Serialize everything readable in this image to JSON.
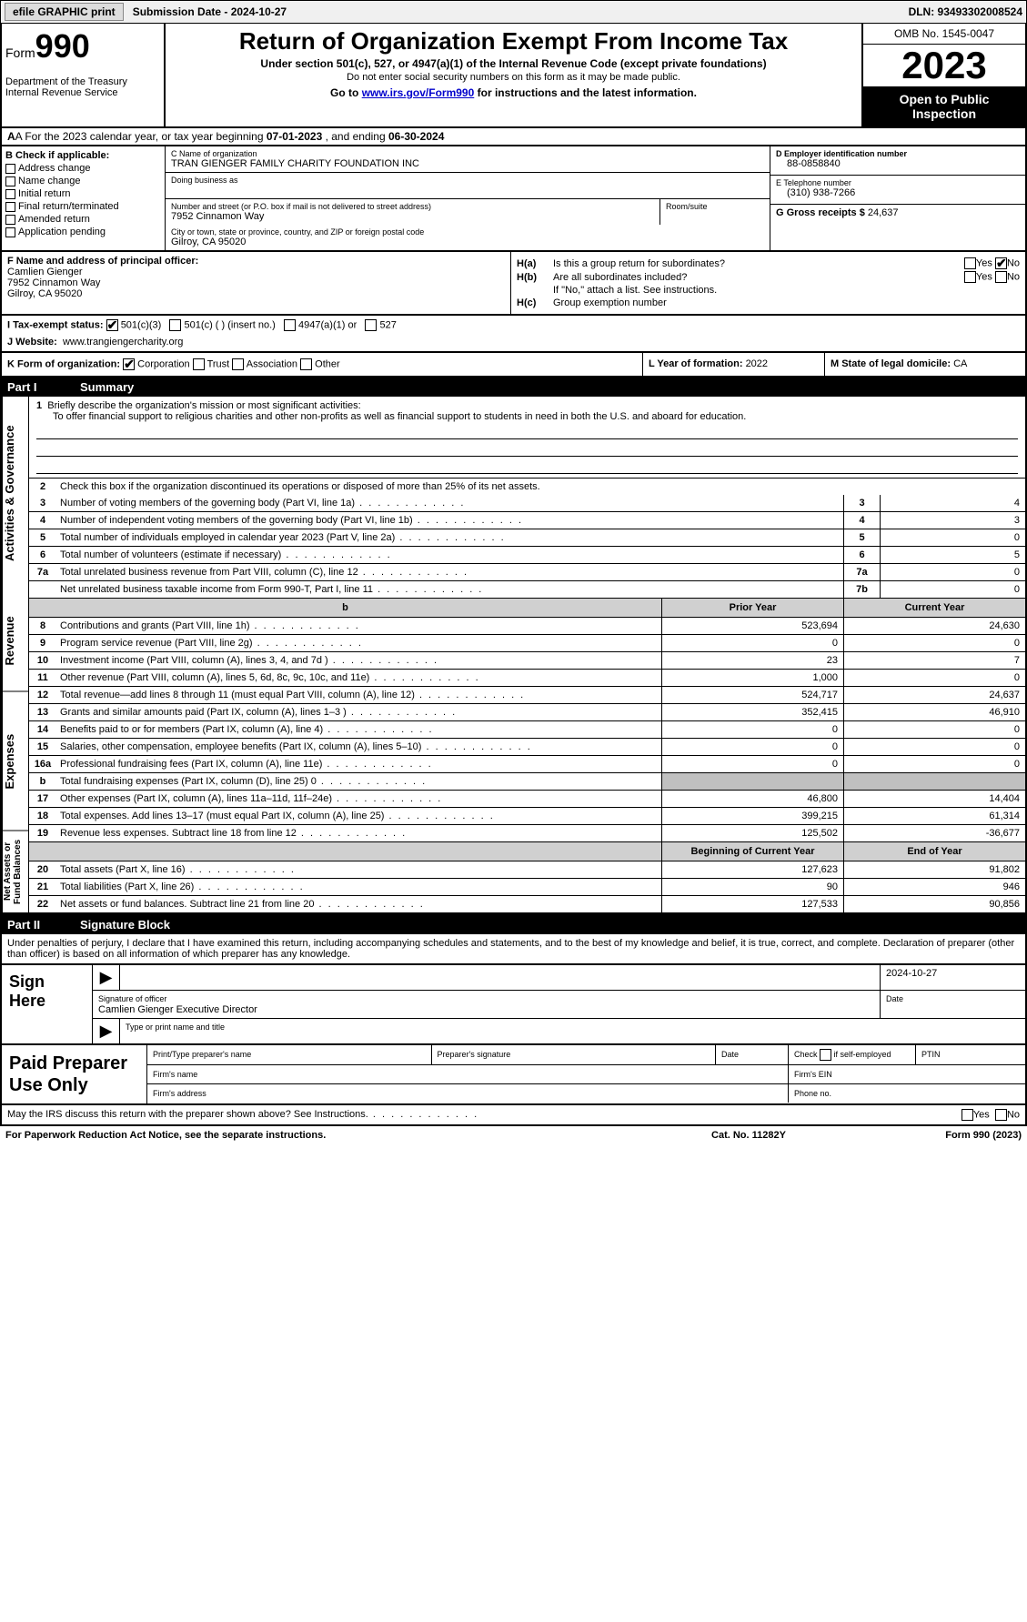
{
  "topbar": {
    "efile": "efile GRAPHIC print",
    "submission": "Submission Date - 2024-10-27",
    "dln": "DLN: 93493302008524"
  },
  "header": {
    "form_label": "Form",
    "form_num": "990",
    "dept": "Department of the Treasury Internal Revenue Service",
    "title": "Return of Organization Exempt From Income Tax",
    "sub1": "Under section 501(c), 527, or 4947(a)(1) of the Internal Revenue Code (except private foundations)",
    "sub2": "Do not enter social security numbers on this form as it may be made public.",
    "sub3_pre": "Go to ",
    "sub3_link": "www.irs.gov/Form990",
    "sub3_post": " for instructions and the latest information.",
    "omb": "OMB No. 1545-0047",
    "year": "2023",
    "inspect": "Open to Public Inspection"
  },
  "row_a": {
    "pre": "A For the 2023 calendar year, or tax year beginning ",
    "begin": "07-01-2023",
    "mid": " , and ending ",
    "end": "06-30-2024"
  },
  "col_b": {
    "label": "B Check if applicable:",
    "items": [
      "Address change",
      "Name change",
      "Initial return",
      "Final return/terminated",
      "Amended return",
      "Application pending"
    ]
  },
  "col_c": {
    "name_lbl": "C Name of organization",
    "name": "TRAN GIENGER FAMILY CHARITY FOUNDATION INC",
    "dba_lbl": "Doing business as",
    "addr_lbl": "Number and street (or P.O. box if mail is not delivered to street address)",
    "addr": "7952 Cinnamon Way",
    "room_lbl": "Room/suite",
    "city_lbl": "City or town, state or province, country, and ZIP or foreign postal code",
    "city": "Gilroy, CA  95020"
  },
  "col_d": {
    "ein_lbl": "D Employer identification number",
    "ein": "88-0858840",
    "tel_lbl": "E Telephone number",
    "tel": "(310) 938-7266",
    "gross_lbl": "G Gross receipts $ ",
    "gross": "24,637"
  },
  "col_f": {
    "lbl": "F Name and address of principal officer:",
    "name": "Camlien Gienger",
    "addr1": "7952 Cinnamon Way",
    "addr2": "Gilroy, CA  95020"
  },
  "col_h": {
    "ha_lbl": "H(a)",
    "ha_txt": "Is this a group return for subordinates?",
    "ha_no": true,
    "hb_lbl": "H(b)",
    "hb_txt": "Are all subordinates included?",
    "hb_note": "If \"No,\" attach a list. See instructions.",
    "hc_lbl": "H(c)",
    "hc_txt": "Group exemption number"
  },
  "row_i": {
    "lbl": "I    Tax-exempt status:",
    "c3": "501(c)(3)",
    "c": "501(c) (  ) (insert no.)",
    "a1": "4947(a)(1) or",
    "s527": "527"
  },
  "row_j": {
    "lbl": "J    Website:",
    "val": "www.trangiengercharity.org"
  },
  "row_k": {
    "lbl": "K Form of organization:",
    "corp": "Corporation",
    "trust": "Trust",
    "assoc": "Association",
    "other": "Other",
    "l_lbl": "L Year of formation: ",
    "l_val": "2022",
    "m_lbl": "M State of legal domicile: ",
    "m_val": "CA"
  },
  "part1": {
    "num": "Part I",
    "title": "Summary"
  },
  "vtabs": {
    "ag": "Activities & Governance",
    "rev": "Revenue",
    "exp": "Expenses",
    "net": "Net Assets or Fund Balances"
  },
  "mission": {
    "lbl": "Briefly describe the organization's mission or most significant activities:",
    "txt": "To offer financial support to religious charities and other non-profits as well as financial support to students in need in both the U.S. and aboard for education."
  },
  "q2": "Check this box      if the organization discontinued its operations or disposed of more than 25% of its net assets.",
  "rows_ag": [
    {
      "n": "3",
      "t": "Number of voting members of the governing body (Part VI, line 1a)",
      "b": "3",
      "v": "4"
    },
    {
      "n": "4",
      "t": "Number of independent voting members of the governing body (Part VI, line 1b)",
      "b": "4",
      "v": "3"
    },
    {
      "n": "5",
      "t": "Total number of individuals employed in calendar year 2023 (Part V, line 2a)",
      "b": "5",
      "v": "0"
    },
    {
      "n": "6",
      "t": "Total number of volunteers (estimate if necessary)",
      "b": "6",
      "v": "5"
    },
    {
      "n": "7a",
      "t": "Total unrelated business revenue from Part VIII, column (C), line 12",
      "b": "7a",
      "v": "0"
    },
    {
      "n": "",
      "t": "Net unrelated business taxable income from Form 990-T, Part I, line 11",
      "b": "7b",
      "v": "0"
    }
  ],
  "tbl_hdr": {
    "c2": "Prior Year",
    "c3": "Current Year"
  },
  "rows_rev": [
    {
      "n": "8",
      "t": "Contributions and grants (Part VIII, line 1h)",
      "v1": "523,694",
      "v2": "24,630"
    },
    {
      "n": "9",
      "t": "Program service revenue (Part VIII, line 2g)",
      "v1": "0",
      "v2": "0"
    },
    {
      "n": "10",
      "t": "Investment income (Part VIII, column (A), lines 3, 4, and 7d )",
      "v1": "23",
      "v2": "7"
    },
    {
      "n": "11",
      "t": "Other revenue (Part VIII, column (A), lines 5, 6d, 8c, 9c, 10c, and 11e)",
      "v1": "1,000",
      "v2": "0"
    },
    {
      "n": "12",
      "t": "Total revenue—add lines 8 through 11 (must equal Part VIII, column (A), line 12)",
      "v1": "524,717",
      "v2": "24,637"
    }
  ],
  "rows_exp": [
    {
      "n": "13",
      "t": "Grants and similar amounts paid (Part IX, column (A), lines 1–3 )",
      "v1": "352,415",
      "v2": "46,910"
    },
    {
      "n": "14",
      "t": "Benefits paid to or for members (Part IX, column (A), line 4)",
      "v1": "0",
      "v2": "0"
    },
    {
      "n": "15",
      "t": "Salaries, other compensation, employee benefits (Part IX, column (A), lines 5–10)",
      "v1": "0",
      "v2": "0"
    },
    {
      "n": "16a",
      "t": "Professional fundraising fees (Part IX, column (A), line 11e)",
      "v1": "0",
      "v2": "0"
    },
    {
      "n": "b",
      "t": "Total fundraising expenses (Part IX, column (D), line 25) 0",
      "v1": "",
      "v2": "",
      "gray": true
    },
    {
      "n": "17",
      "t": "Other expenses (Part IX, column (A), lines 11a–11d, 11f–24e)",
      "v1": "46,800",
      "v2": "14,404"
    },
    {
      "n": "18",
      "t": "Total expenses. Add lines 13–17 (must equal Part IX, column (A), line 25)",
      "v1": "399,215",
      "v2": "61,314"
    },
    {
      "n": "19",
      "t": "Revenue less expenses. Subtract line 18 from line 12",
      "v1": "125,502",
      "v2": "-36,677"
    }
  ],
  "tbl_hdr2": {
    "c2": "Beginning of Current Year",
    "c3": "End of Year"
  },
  "rows_net": [
    {
      "n": "20",
      "t": "Total assets (Part X, line 16)",
      "v1": "127,623",
      "v2": "91,802"
    },
    {
      "n": "21",
      "t": "Total liabilities (Part X, line 26)",
      "v1": "90",
      "v2": "946"
    },
    {
      "n": "22",
      "t": "Net assets or fund balances. Subtract line 21 from line 20",
      "v1": "127,533",
      "v2": "90,856"
    }
  ],
  "part2": {
    "num": "Part II",
    "title": "Signature Block"
  },
  "sig_intro": "Under penalties of perjury, I declare that I have examined this return, including accompanying schedules and statements, and to the best of my knowledge and belief, it is true, correct, and complete. Declaration of preparer (other than officer) is based on all information of which preparer has any knowledge.",
  "sign": {
    "here": "Sign Here",
    "date": "2024-10-27",
    "sig_lbl": "Signature of officer",
    "name": "Camlien Gienger Executive Director",
    "type_lbl": "Type or print name and title",
    "date_lbl": "Date"
  },
  "paid": {
    "lbl": "Paid Preparer Use Only",
    "h1": "Print/Type preparer's name",
    "h2": "Preparer's signature",
    "h3": "Date",
    "h4": "Check       if self-employed",
    "h5": "PTIN",
    "firm_name": "Firm's name",
    "firm_ein": "Firm's EIN",
    "firm_addr": "Firm's address",
    "phone": "Phone no."
  },
  "footer": {
    "discuss": "May the IRS discuss this return with the preparer shown above? See Instructions.",
    "yes": "Yes",
    "no": "No",
    "paperwork": "For Paperwork Reduction Act Notice, see the separate instructions.",
    "cat": "Cat. No. 11282Y",
    "form": "Form 990 (2023)"
  }
}
